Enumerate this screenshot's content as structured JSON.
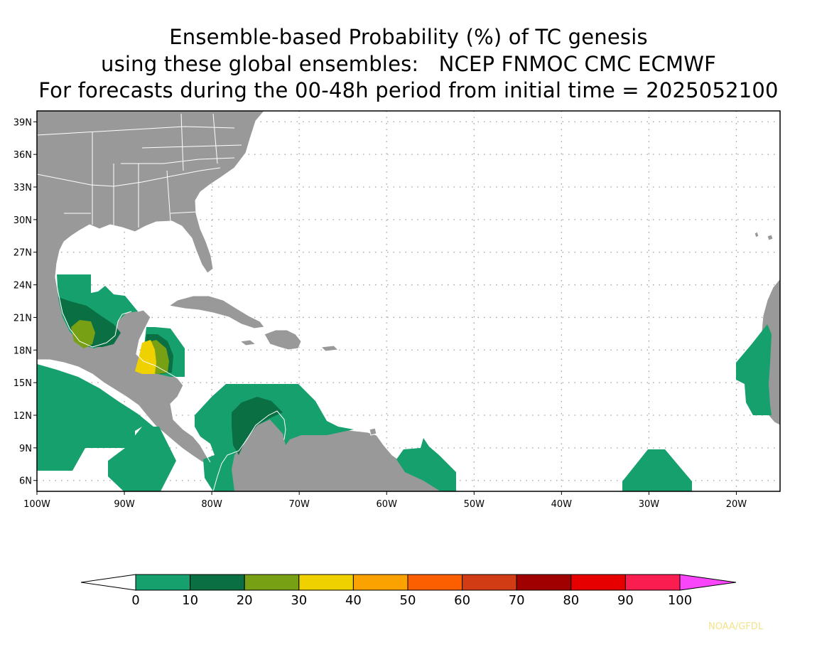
{
  "title": {
    "line1": "Ensemble-based Probability (%) of TC genesis",
    "line2": "using these global ensembles:   NCEP FNMOC CMC ECMWF",
    "line3": "For forecasts during the 00-48h period from initial time = 2025052100"
  },
  "map": {
    "lon_range": [
      -100,
      -15
    ],
    "lat_range": [
      5,
      40
    ],
    "lat_ticks": [
      {
        "value": 39,
        "label": "39N"
      },
      {
        "value": 36,
        "label": "36N"
      },
      {
        "value": 33,
        "label": "33N"
      },
      {
        "value": 30,
        "label": "30N"
      },
      {
        "value": 27,
        "label": "27N"
      },
      {
        "value": 24,
        "label": "24N"
      },
      {
        "value": 21,
        "label": "21N"
      },
      {
        "value": 18,
        "label": "18N"
      },
      {
        "value": 15,
        "label": "15N"
      },
      {
        "value": 12,
        "label": "12N"
      },
      {
        "value": 9,
        "label": "9N"
      },
      {
        "value": 6,
        "label": "6N"
      }
    ],
    "lon_ticks": [
      {
        "value": -100,
        "label": "100W"
      },
      {
        "value": -90,
        "label": "90W"
      },
      {
        "value": -80,
        "label": "80W"
      },
      {
        "value": -70,
        "label": "70W"
      },
      {
        "value": -60,
        "label": "60W"
      },
      {
        "value": -50,
        "label": "50W"
      },
      {
        "value": -40,
        "label": "40W"
      },
      {
        "value": -30,
        "label": "30W"
      },
      {
        "value": -20,
        "label": "20W"
      }
    ],
    "colors": {
      "land": "#999999",
      "coast": "#ffffff",
      "ocean": "#ffffff",
      "grid": "#a0a0a0"
    }
  },
  "legend": {
    "bins": [
      {
        "from": 0,
        "to": 10,
        "color": "#15a06e"
      },
      {
        "from": 10,
        "to": 20,
        "color": "#0b6f44"
      },
      {
        "from": 20,
        "to": 30,
        "color": "#78a014"
      },
      {
        "from": 30,
        "to": 40,
        "color": "#f0d100"
      },
      {
        "from": 40,
        "to": 50,
        "color": "#fba200"
      },
      {
        "from": 50,
        "to": 60,
        "color": "#fb5f00"
      },
      {
        "from": 60,
        "to": 70,
        "color": "#d23c14"
      },
      {
        "from": 70,
        "to": 80,
        "color": "#a00000"
      },
      {
        "from": 80,
        "to": 90,
        "color": "#e60000"
      },
      {
        "from": 90,
        "to": 100,
        "color": "#fa1e50"
      }
    ],
    "labels": [
      "0",
      "10",
      "20",
      "30",
      "40",
      "50",
      "60",
      "70",
      "80",
      "90",
      "100"
    ],
    "over_color": "#fa46fa",
    "under_color": "#ffffff"
  },
  "credit": "NOAA/GFDL"
}
